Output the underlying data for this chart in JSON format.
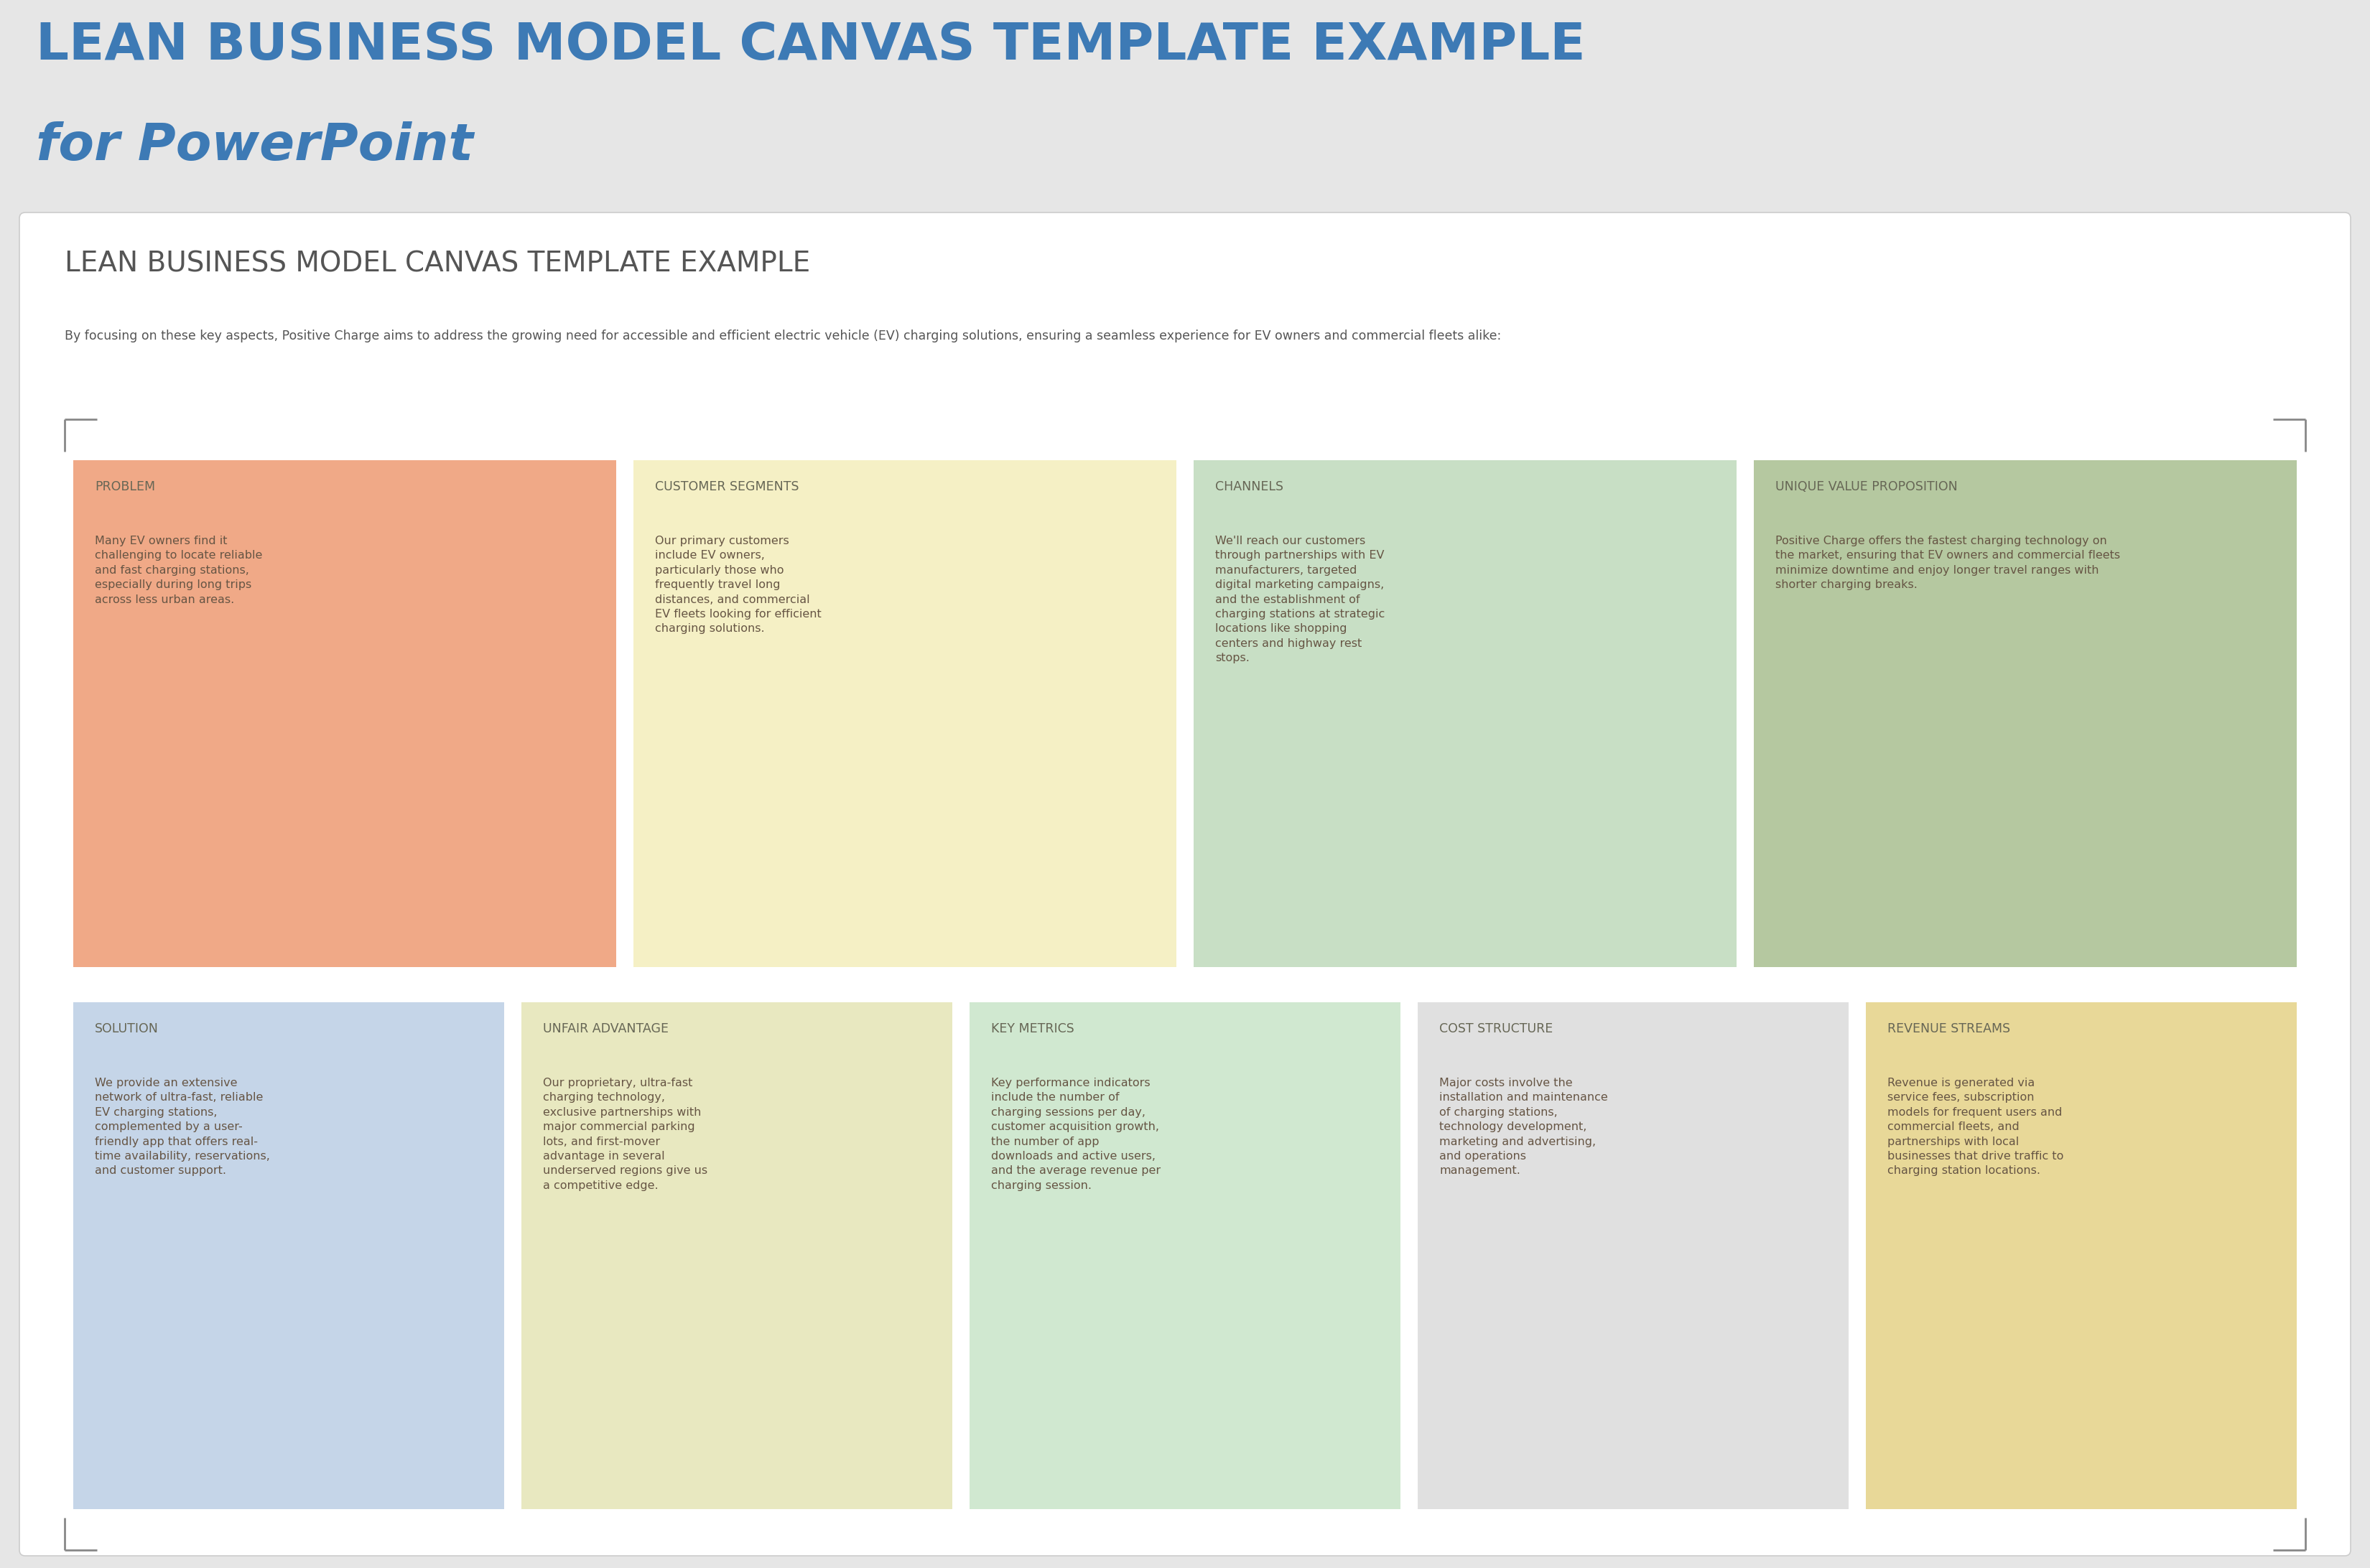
{
  "bg_color": "#e6e6e6",
  "card_bg": "#ffffff",
  "title_line1": "LEAN BUSINESS MODEL CANVAS TEMPLATE EXAMPLE",
  "title_line2": "for PowerPoint",
  "title_color": "#3d7ab5",
  "subtitle": "LEAN BUSINESS MODEL CANVAS TEMPLATE EXAMPLE",
  "subtitle_color": "#555555",
  "description": "By focusing on these key aspects, Positive Charge aims to address the growing need for accessible and efficient electric vehicle (EV) charging solutions, ensuring a seamless experience for EV owners and commercial fleets alike:",
  "desc_color": "#555555",
  "cells": [
    {
      "title": "PROBLEM",
      "body": "Many EV owners find it\nchallenging to locate reliable\nand fast charging stations,\nespecially during long trips\nacross less urban areas.",
      "bg_color": "#f0a987",
      "row": 0,
      "col": 0
    },
    {
      "title": "CUSTOMER SEGMENTS",
      "body": "Our primary customers\ninclude EV owners,\nparticularly those who\nfrequently travel long\ndistances, and commercial\nEV fleets looking for efficient\ncharging solutions.",
      "bg_color": "#f5f0c5",
      "row": 0,
      "col": 1
    },
    {
      "title": "CHANNELS",
      "body": "We'll reach our customers\nthrough partnerships with EV\nmanufacturers, targeted\ndigital marketing campaigns,\nand the establishment of\ncharging stations at strategic\nlocations like shopping\ncenters and highway rest\nstops.",
      "bg_color": "#c8dfc5",
      "row": 0,
      "col": 2
    },
    {
      "title": "UNIQUE VALUE PROPOSITION",
      "body": "Positive Charge offers the fastest charging technology on\nthe market, ensuring that EV owners and commercial fleets\nminimize downtime and enjoy longer travel ranges with\nshorter charging breaks.",
      "bg_color": "#b5c8a0",
      "row": 0,
      "col": 3
    },
    {
      "title": "SOLUTION",
      "body": "We provide an extensive\nnetwork of ultra-fast, reliable\nEV charging stations,\ncomplemented by a user-\nfriendly app that offers real-\ntime availability, reservations,\nand customer support.",
      "bg_color": "#c5d5e8",
      "row": 1,
      "col": 0
    },
    {
      "title": "UNFAIR ADVANTAGE",
      "body": "Our proprietary, ultra-fast\ncharging technology,\nexclusive partnerships with\nmajor commercial parking\nlots, and first-mover\nadvantage in several\nunderserved regions give us\na competitive edge.",
      "bg_color": "#e8e8c0",
      "row": 1,
      "col": 1
    },
    {
      "title": "KEY METRICS",
      "body": "Key performance indicators\ninclude the number of\ncharging sessions per day,\ncustomer acquisition growth,\nthe number of app\ndownloads and active users,\nand the average revenue per\ncharging session.",
      "bg_color": "#d0e8d0",
      "row": 1,
      "col": 2
    },
    {
      "title": "COST STRUCTURE",
      "body": "Major costs involve the\ninstallation and maintenance\nof charging stations,\ntechnology development,\nmarketing and advertising,\nand operations\nmanagement.",
      "bg_color": "#e0e0e0",
      "row": 1,
      "col": 3
    },
    {
      "title": "REVENUE STREAMS",
      "body": "Revenue is generated via\nservice fees, subscription\nmodels for frequent users and\ncommercial fleets, and\npartnerships with local\nbusinesses that drive traffic to\ncharging station locations.",
      "bg_color": "#e8d898",
      "row": 1,
      "col": 4
    }
  ]
}
